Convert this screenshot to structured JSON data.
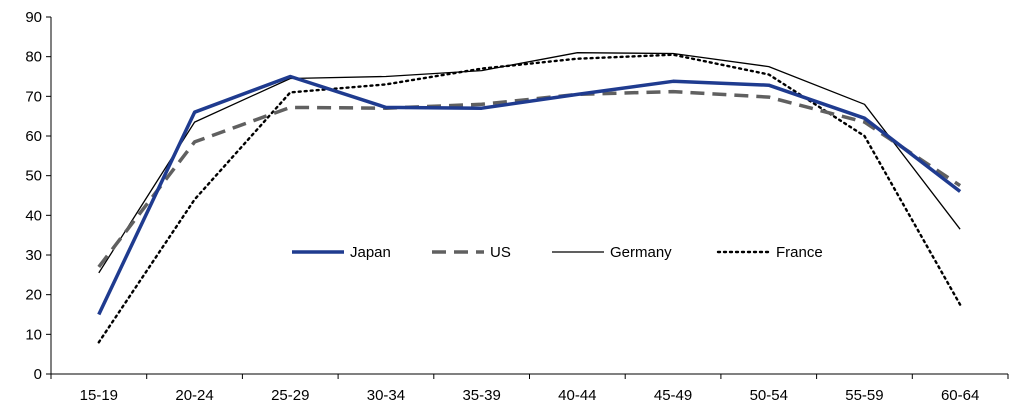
{
  "chart_data": {
    "type": "line",
    "title": "",
    "xlabel": "",
    "ylabel": "",
    "categories": [
      "15-19",
      "20-24",
      "25-29",
      "30-34",
      "35-39",
      "40-44",
      "45-49",
      "50-54",
      "55-59",
      "60-64"
    ],
    "ylim": [
      0,
      90
    ],
    "yticks": [
      0,
      10,
      20,
      30,
      40,
      50,
      60,
      70,
      80,
      90
    ],
    "grid": false,
    "legend_position": "center",
    "series": [
      {
        "name": "Japan",
        "style": "solid-thick",
        "color": "#1f3b8f",
        "values": [
          15,
          66,
          75,
          67.2,
          67,
          70.5,
          73.8,
          72.8,
          64.5,
          46
        ]
      },
      {
        "name": "US",
        "style": "dashed",
        "color": "#606060",
        "values": [
          27,
          58.5,
          67.2,
          67,
          68,
          70.5,
          71.2,
          69.8,
          63.5,
          47.5
        ]
      },
      {
        "name": "Germany",
        "style": "solid-thin",
        "color": "#000000",
        "values": [
          25.5,
          63.5,
          74.5,
          75,
          76.5,
          81,
          80.8,
          77.5,
          68,
          36.5
        ]
      },
      {
        "name": "France",
        "style": "dotted",
        "color": "#000000",
        "values": [
          8,
          44,
          71,
          73,
          77,
          79.5,
          80.5,
          75.5,
          60,
          17.5
        ]
      }
    ]
  }
}
